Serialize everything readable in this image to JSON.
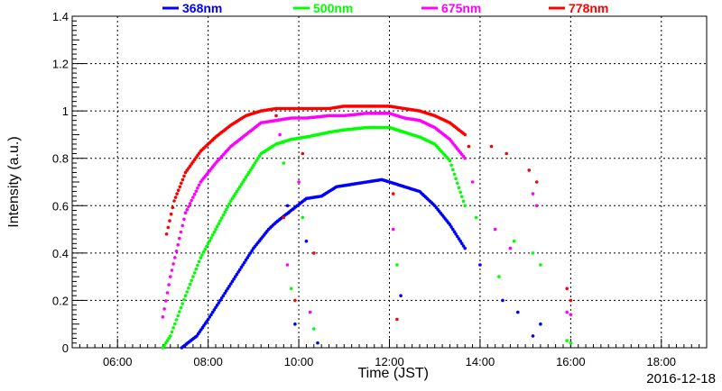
{
  "chart_data": {
    "type": "scatter",
    "title": "",
    "xlabel": "Time (JST)",
    "ylabel": "Intensity (a.u.)",
    "date_label": "2016-12-18",
    "xlim": [
      "05:00",
      "19:00"
    ],
    "ylim": [
      0,
      1.4
    ],
    "grid": true,
    "legend_position": "top",
    "x_ticks": [
      "06:00",
      "08:00",
      "10:00",
      "12:00",
      "14:00",
      "16:00",
      "18:00"
    ],
    "y_ticks": [
      "0",
      "0.2",
      "0.4",
      "0.6",
      "0.8",
      "1",
      "1.2",
      "1.4"
    ],
    "series": [
      {
        "name": "368nm",
        "color": "#0000ff",
        "points": [
          [
            "07:25",
            0.0
          ],
          [
            "07:45",
            0.05
          ],
          [
            "08:00",
            0.12
          ],
          [
            "08:20",
            0.22
          ],
          [
            "08:40",
            0.32
          ],
          [
            "09:00",
            0.42
          ],
          [
            "09:20",
            0.5
          ],
          [
            "09:30",
            0.53
          ],
          [
            "09:50",
            0.58
          ],
          [
            "10:10",
            0.63
          ],
          [
            "10:30",
            0.64
          ],
          [
            "10:50",
            0.68
          ],
          [
            "11:10",
            0.69
          ],
          [
            "11:30",
            0.7
          ],
          [
            "11:50",
            0.71
          ],
          [
            "12:00",
            0.7
          ],
          [
            "12:20",
            0.68
          ],
          [
            "12:40",
            0.66
          ],
          [
            "13:00",
            0.6
          ],
          [
            "13:20",
            0.52
          ],
          [
            "13:40",
            0.42
          ]
        ]
      },
      {
        "name": "500nm",
        "color": "#00ff00",
        "points": [
          [
            "07:00",
            0.0
          ],
          [
            "07:10",
            0.05
          ],
          [
            "07:30",
            0.22
          ],
          [
            "07:50",
            0.38
          ],
          [
            "08:10",
            0.5
          ],
          [
            "08:30",
            0.62
          ],
          [
            "08:50",
            0.72
          ],
          [
            "09:10",
            0.82
          ],
          [
            "09:30",
            0.86
          ],
          [
            "09:50",
            0.88
          ],
          [
            "10:10",
            0.89
          ],
          [
            "10:40",
            0.91
          ],
          [
            "11:00",
            0.92
          ],
          [
            "11:30",
            0.93
          ],
          [
            "12:00",
            0.93
          ],
          [
            "12:20",
            0.91
          ],
          [
            "12:40",
            0.89
          ],
          [
            "13:00",
            0.86
          ],
          [
            "13:20",
            0.79
          ],
          [
            "13:40",
            0.6
          ]
        ]
      },
      {
        "name": "675nm",
        "color": "#ff00ff",
        "points": [
          [
            "07:00",
            0.13
          ],
          [
            "07:10",
            0.3
          ],
          [
            "07:30",
            0.57
          ],
          [
            "07:50",
            0.7
          ],
          [
            "08:10",
            0.78
          ],
          [
            "08:30",
            0.85
          ],
          [
            "08:50",
            0.9
          ],
          [
            "09:10",
            0.95
          ],
          [
            "09:30",
            0.96
          ],
          [
            "09:50",
            0.97
          ],
          [
            "10:10",
            0.97
          ],
          [
            "10:40",
            0.98
          ],
          [
            "11:00",
            0.98
          ],
          [
            "11:30",
            0.99
          ],
          [
            "12:00",
            0.99
          ],
          [
            "12:20",
            0.97
          ],
          [
            "12:40",
            0.96
          ],
          [
            "13:00",
            0.93
          ],
          [
            "13:20",
            0.88
          ],
          [
            "13:40",
            0.8
          ]
        ]
      },
      {
        "name": "778nm",
        "color": "#ff0000",
        "points": [
          [
            "07:05",
            0.48
          ],
          [
            "07:15",
            0.62
          ],
          [
            "07:30",
            0.74
          ],
          [
            "07:50",
            0.83
          ],
          [
            "08:10",
            0.89
          ],
          [
            "08:30",
            0.94
          ],
          [
            "08:50",
            0.98
          ],
          [
            "09:10",
            1.0
          ],
          [
            "09:30",
            1.01
          ],
          [
            "09:50",
            1.01
          ],
          [
            "10:10",
            1.01
          ],
          [
            "10:40",
            1.01
          ],
          [
            "11:00",
            1.02
          ],
          [
            "11:30",
            1.02
          ],
          [
            "12:00",
            1.02
          ],
          [
            "12:20",
            1.01
          ],
          [
            "12:40",
            1.0
          ],
          [
            "13:00",
            0.98
          ],
          [
            "13:20",
            0.95
          ],
          [
            "13:40",
            0.9
          ]
        ]
      }
    ],
    "scatter_bursts": [
      {
        "color": "#ff0000",
        "points": [
          [
            "09:30",
            0.98
          ],
          [
            "09:40",
            0.55
          ],
          [
            "09:55",
            0.2
          ],
          [
            "10:05",
            0.82
          ],
          [
            "10:20",
            0.4
          ],
          [
            "12:05",
            0.65
          ],
          [
            "12:10",
            0.12
          ],
          [
            "13:45",
            0.85
          ],
          [
            "14:15",
            0.85
          ],
          [
            "14:35",
            0.82
          ],
          [
            "15:05",
            0.75
          ],
          [
            "15:15",
            0.7
          ],
          [
            "15:55",
            0.25
          ],
          [
            "16:00",
            0.2
          ]
        ]
      },
      {
        "color": "#ff00ff",
        "points": [
          [
            "09:35",
            0.9
          ],
          [
            "09:45",
            0.35
          ],
          [
            "10:00",
            0.7
          ],
          [
            "10:15",
            0.15
          ],
          [
            "12:05",
            0.5
          ],
          [
            "13:50",
            0.7
          ],
          [
            "14:20",
            0.5
          ],
          [
            "14:40",
            0.42
          ],
          [
            "15:10",
            0.65
          ],
          [
            "15:15",
            0.6
          ],
          [
            "15:55",
            0.15
          ],
          [
            "16:00",
            0.14
          ]
        ]
      },
      {
        "color": "#00ff00",
        "points": [
          [
            "09:40",
            0.78
          ],
          [
            "09:50",
            0.25
          ],
          [
            "10:05",
            0.55
          ],
          [
            "10:20",
            0.08
          ],
          [
            "12:10",
            0.35
          ],
          [
            "13:55",
            0.55
          ],
          [
            "14:25",
            0.3
          ],
          [
            "14:45",
            0.45
          ],
          [
            "15:10",
            0.4
          ],
          [
            "15:20",
            0.35
          ],
          [
            "15:55",
            0.03
          ],
          [
            "16:00",
            0.02
          ]
        ]
      },
      {
        "color": "#0000ff",
        "points": [
          [
            "09:45",
            0.6
          ],
          [
            "09:55",
            0.1
          ],
          [
            "10:10",
            0.45
          ],
          [
            "10:25",
            0.02
          ],
          [
            "12:15",
            0.22
          ],
          [
            "14:00",
            0.35
          ],
          [
            "14:30",
            0.2
          ],
          [
            "14:50",
            0.15
          ],
          [
            "15:10",
            0.05
          ],
          [
            "15:20",
            0.1
          ]
        ]
      }
    ]
  }
}
